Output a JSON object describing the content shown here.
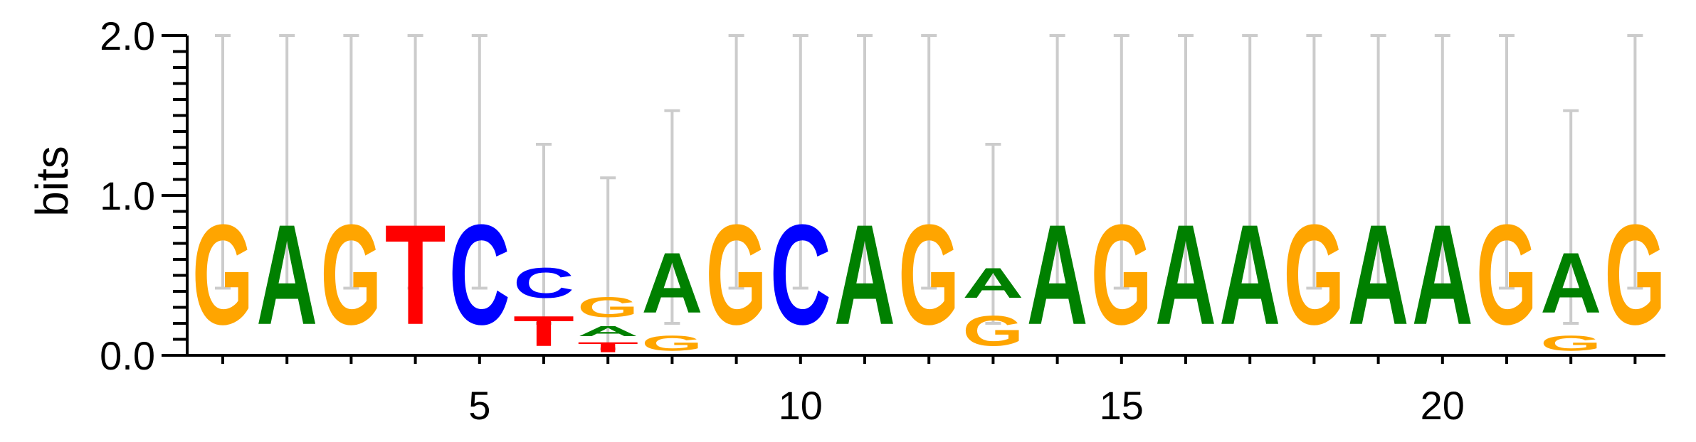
{
  "chart_data": {
    "type": "sequence-logo",
    "ylabel": "bits",
    "ylim": [
      0,
      2.0
    ],
    "y_ticks": [
      "0.0",
      "1.0",
      "2.0"
    ],
    "x_ticks": [
      "5",
      "10",
      "15",
      "20"
    ],
    "x_tick_positions": [
      5,
      10,
      15,
      20
    ],
    "num_positions": 23,
    "colors": {
      "A": "#008000",
      "C": "#0000ff",
      "G": "#ffa500",
      "T": "#ff0000"
    },
    "positions": [
      {
        "pos": 1,
        "error_bar": [
          0.42,
          2.0
        ],
        "letters": [
          {
            "base": "G",
            "height": 1.0
          }
        ]
      },
      {
        "pos": 2,
        "error_bar": [
          0.42,
          2.0
        ],
        "letters": [
          {
            "base": "A",
            "height": 1.0
          }
        ]
      },
      {
        "pos": 3,
        "error_bar": [
          0.42,
          2.0
        ],
        "letters": [
          {
            "base": "G",
            "height": 1.0
          }
        ]
      },
      {
        "pos": 4,
        "error_bar": [
          0.42,
          2.0
        ],
        "letters": [
          {
            "base": "T",
            "height": 1.0
          }
        ]
      },
      {
        "pos": 5,
        "error_bar": [
          0.42,
          2.0
        ],
        "letters": [
          {
            "base": "C",
            "height": 1.0
          }
        ]
      },
      {
        "pos": 6,
        "error_bar": [
          0.2,
          1.32
        ],
        "letters": [
          {
            "base": "T",
            "height": 0.3
          },
          {
            "base": "C",
            "height": 0.3
          }
        ]
      },
      {
        "pos": 7,
        "error_bar": [
          0.04,
          1.11
        ],
        "letters": [
          {
            "base": "T",
            "height": 0.1
          },
          {
            "base": "A",
            "height": 0.1
          },
          {
            "base": "G",
            "height": 0.2
          }
        ]
      },
      {
        "pos": 8,
        "error_bar": [
          0.2,
          1.53
        ],
        "letters": [
          {
            "base": "G",
            "height": 0.15
          },
          {
            "base": "A",
            "height": 0.6
          }
        ]
      },
      {
        "pos": 9,
        "error_bar": [
          0.42,
          2.0
        ],
        "letters": [
          {
            "base": "G",
            "height": 1.0
          }
        ]
      },
      {
        "pos": 10,
        "error_bar": [
          0.42,
          2.0
        ],
        "letters": [
          {
            "base": "C",
            "height": 1.0
          }
        ]
      },
      {
        "pos": 11,
        "error_bar": [
          0.42,
          2.0
        ],
        "letters": [
          {
            "base": "A",
            "height": 1.0
          }
        ]
      },
      {
        "pos": 12,
        "error_bar": [
          0.42,
          2.0
        ],
        "letters": [
          {
            "base": "G",
            "height": 1.0
          }
        ]
      },
      {
        "pos": 13,
        "error_bar": [
          0.2,
          1.32
        ],
        "letters": [
          {
            "base": "G",
            "height": 0.3
          },
          {
            "base": "A",
            "height": 0.3
          }
        ]
      },
      {
        "pos": 14,
        "error_bar": [
          0.42,
          2.0
        ],
        "letters": [
          {
            "base": "A",
            "height": 1.0
          }
        ]
      },
      {
        "pos": 15,
        "error_bar": [
          0.42,
          2.0
        ],
        "letters": [
          {
            "base": "G",
            "height": 1.0
          }
        ]
      },
      {
        "pos": 16,
        "error_bar": [
          0.42,
          2.0
        ],
        "letters": [
          {
            "base": "A",
            "height": 1.0
          }
        ]
      },
      {
        "pos": 17,
        "error_bar": [
          0.42,
          2.0
        ],
        "letters": [
          {
            "base": "A",
            "height": 1.0
          }
        ]
      },
      {
        "pos": 18,
        "error_bar": [
          0.42,
          2.0
        ],
        "letters": [
          {
            "base": "G",
            "height": 1.0
          }
        ]
      },
      {
        "pos": 19,
        "error_bar": [
          0.42,
          2.0
        ],
        "letters": [
          {
            "base": "A",
            "height": 1.0
          }
        ]
      },
      {
        "pos": 20,
        "error_bar": [
          0.42,
          2.0
        ],
        "letters": [
          {
            "base": "A",
            "height": 1.0
          }
        ]
      },
      {
        "pos": 21,
        "error_bar": [
          0.42,
          2.0
        ],
        "letters": [
          {
            "base": "G",
            "height": 1.0
          }
        ]
      },
      {
        "pos": 22,
        "error_bar": [
          0.2,
          1.53
        ],
        "letters": [
          {
            "base": "G",
            "height": 0.15
          },
          {
            "base": "A",
            "height": 0.6
          }
        ]
      },
      {
        "pos": 23,
        "error_bar": [
          0.42,
          2.0
        ],
        "letters": [
          {
            "base": "G",
            "height": 1.0
          }
        ]
      }
    ]
  }
}
